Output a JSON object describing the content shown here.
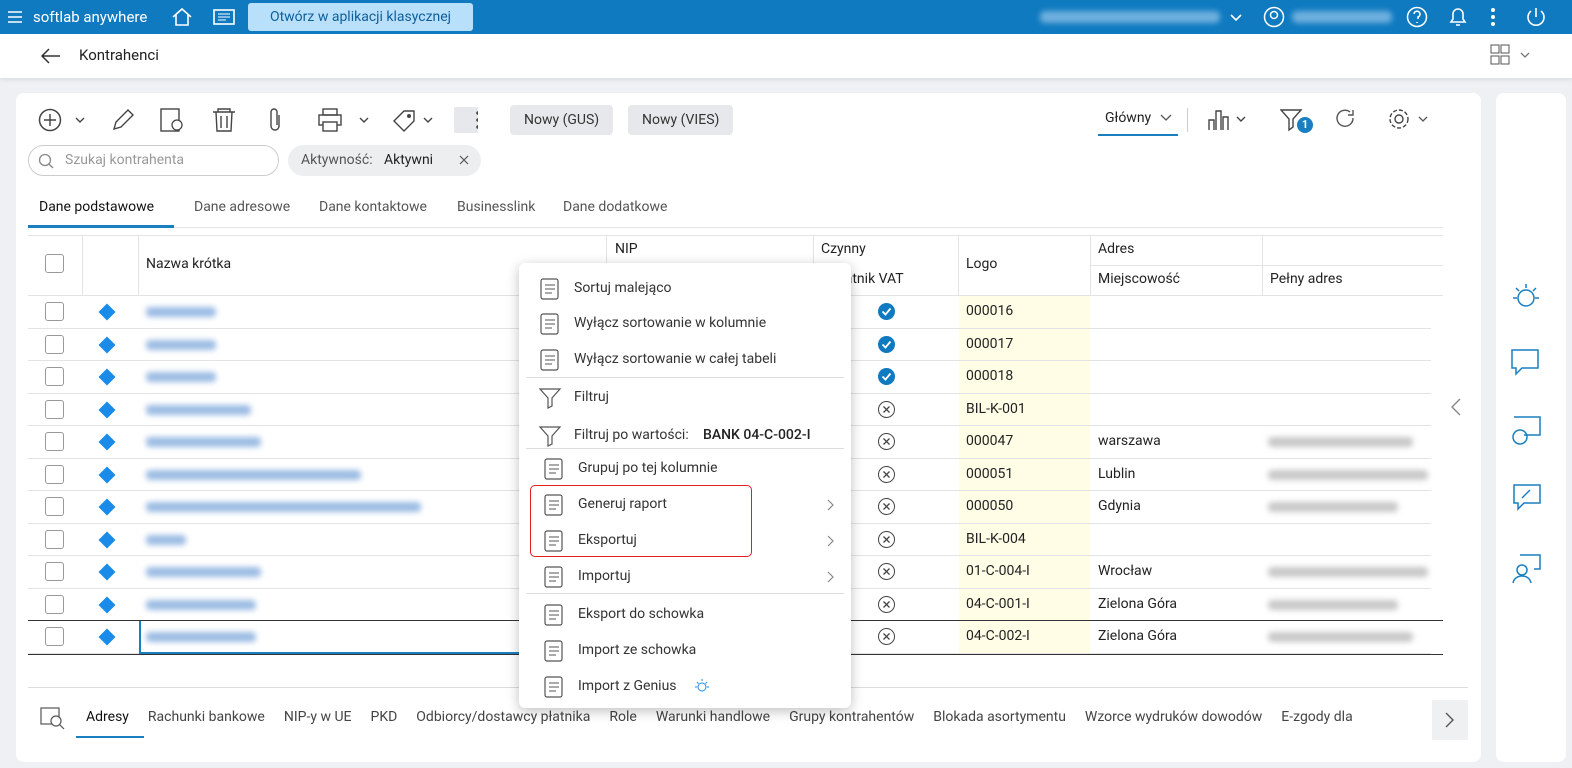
{
  "topbar": {
    "app_name": "softlab anywhere",
    "open_button": "Otwórz w aplikacji klasycznej"
  },
  "header": {
    "title": "Kontrahenci"
  },
  "toolbar": {
    "buttons": [
      "Nowy (GUS)",
      "Nowy (VIES)"
    ],
    "view": "Główny",
    "filter_badge": "1"
  },
  "search": {
    "placeholder": "Szukaj kontrahenta",
    "chip_label": "Aktywność:",
    "chip_value": "Aktywni"
  },
  "tabs": [
    "Dane podstawowe",
    "Dane adresowe",
    "Dane kontaktowe",
    "Businesslink",
    "Dane dodatkowe"
  ],
  "table": {
    "headers": {
      "name": "Nazwa krótka",
      "nip": "NIP",
      "active": "Czynny",
      "vat": "podatnik VAT",
      "logo": "Logo",
      "address": "Adres",
      "city": "Miejscowość",
      "full": "Pełny adres"
    },
    "rows": [
      {
        "vat": true,
        "logo": "000016",
        "city": null
      },
      {
        "vat": true,
        "logo": "000017",
        "city": null
      },
      {
        "vat": true,
        "logo": "000018",
        "city": null
      },
      {
        "vat": false,
        "logo": "BIL-K-001",
        "city": null
      },
      {
        "vat": false,
        "logo": "000047",
        "city": "warszawa"
      },
      {
        "vat": false,
        "logo": "000051",
        "city": "Lublin"
      },
      {
        "vat": false,
        "logo": "000050",
        "city": "Gdynia"
      },
      {
        "vat": false,
        "logo": "BIL-K-004",
        "city": null
      },
      {
        "vat": false,
        "logo": "01-C-004-I",
        "city": "Wrocław"
      },
      {
        "vat": false,
        "logo": "04-C-001-I",
        "city": "Zielona Góra"
      },
      {
        "vat": false,
        "logo": "04-C-002-I",
        "city": "Zielona Góra"
      }
    ]
  },
  "menu": {
    "items": [
      {
        "label": "Sortuj malejąco",
        "submenu": false
      },
      {
        "label": "Wyłącz sortowanie w kolumnie",
        "submenu": false
      },
      {
        "label": "Wyłącz sortowanie w całej tabeli",
        "submenu": false
      },
      {
        "label": "Filtruj",
        "submenu": false
      },
      {
        "label": "Filtruj po wartości:",
        "value": "BANK 04-C-002-I",
        "submenu": false
      },
      {
        "label": "Grupuj po tej kolumnie",
        "submenu": false
      },
      {
        "label": "Generuj raport",
        "submenu": true
      },
      {
        "label": "Eksportuj",
        "submenu": true
      },
      {
        "label": "Importuj",
        "submenu": true
      },
      {
        "label": "Eksport do schowka",
        "submenu": false
      },
      {
        "label": "Import ze schowka",
        "submenu": false
      },
      {
        "label": "Import z Genius",
        "submenu": false
      }
    ]
  },
  "bottom_tabs": [
    "Adresy",
    "Rachunki bankowe",
    "NIP-y w UE",
    "PKD",
    "Odbiorcy/dostawcy płatnika",
    "Role",
    "Warunki handlowe",
    "Grupy kontrahentów",
    "Blokada asortymentu",
    "Wzorce wydruków dowodów",
    "E-zgody dla"
  ]
}
